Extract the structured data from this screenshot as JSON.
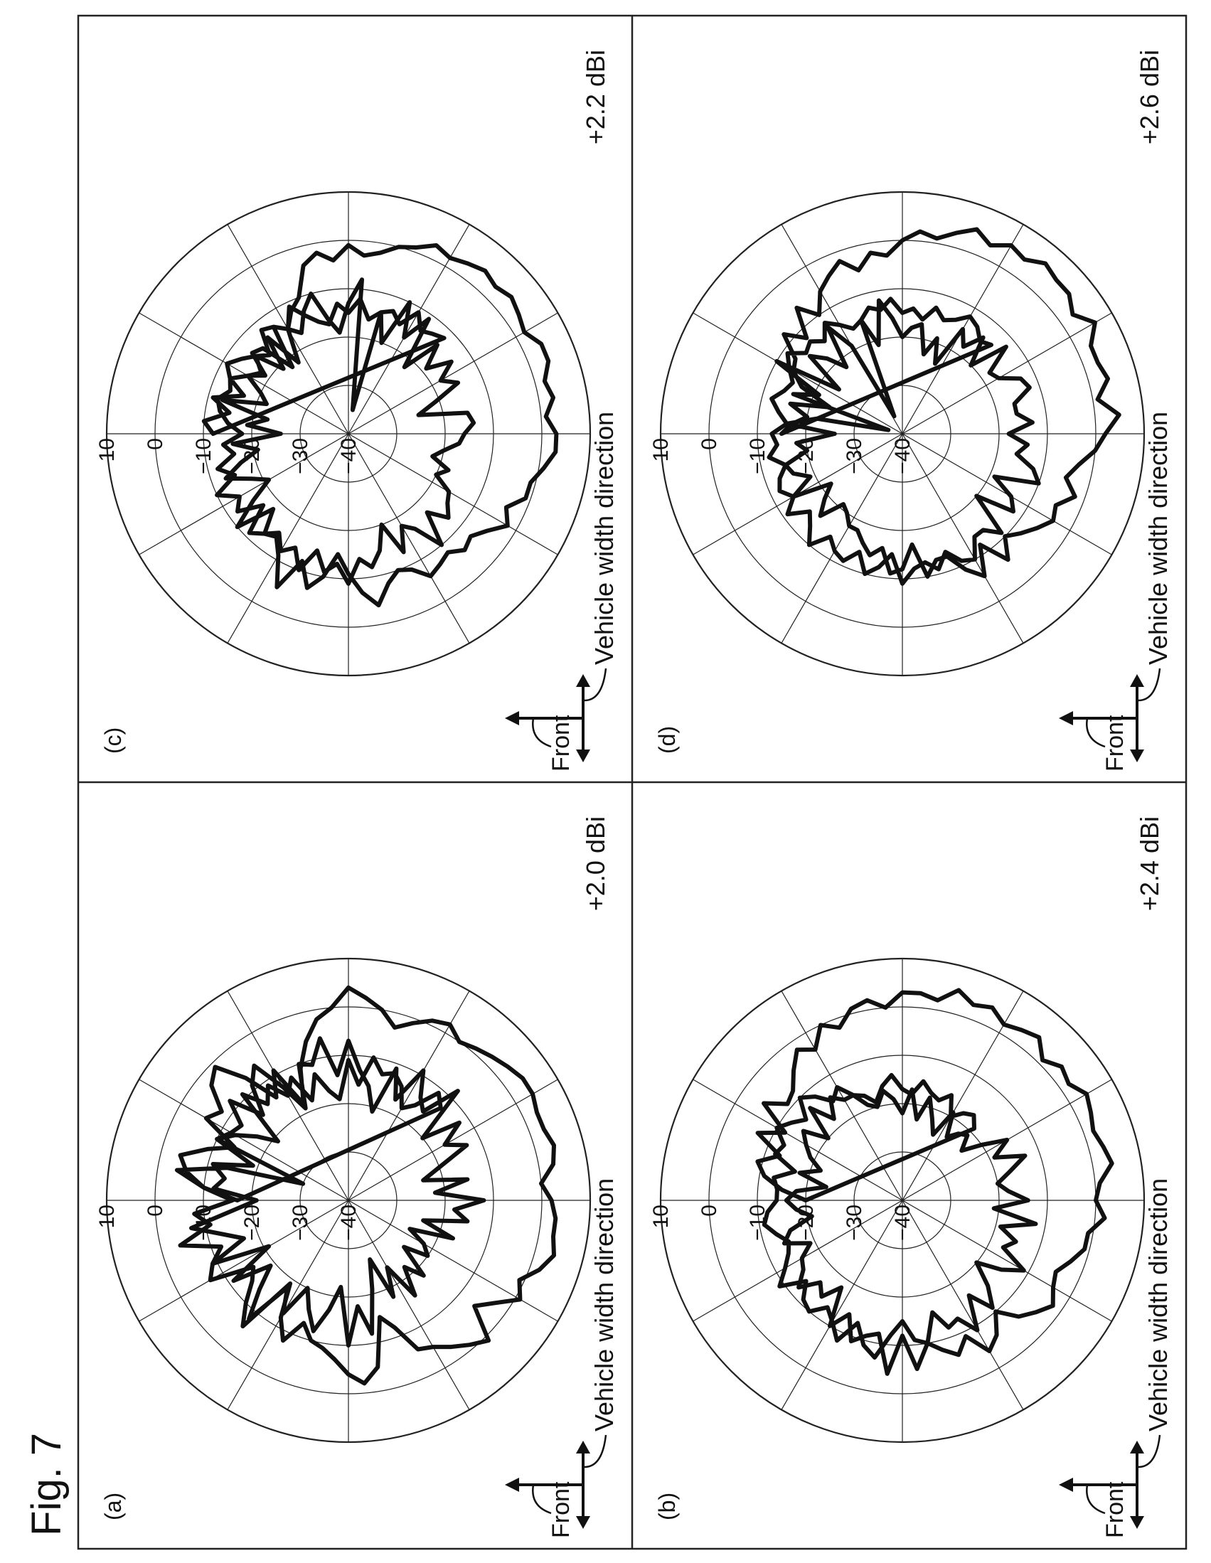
{
  "figure_label": "Fig. 7",
  "chart_data": [
    {
      "type": "polar-line",
      "panel": "(a)",
      "gain_label": "+2.0 dBi",
      "front_label": "Front",
      "direction_label": "Vehicle width direction",
      "radial_ticks": [
        "10",
        "0",
        "-10",
        "-20",
        "-30",
        "-40"
      ],
      "rlim": [
        -40,
        10
      ],
      "angle_step_deg": 5,
      "values": [
        -17,
        -10,
        -6,
        -4,
        -9,
        -14,
        -6,
        -8,
        -3,
        -1,
        -7,
        -14,
        -9,
        -18,
        -11,
        -6,
        -2,
        0,
        4,
        2,
        0,
        -3,
        -1,
        1,
        2,
        0,
        1,
        2,
        3,
        4,
        4,
        3,
        3,
        4,
        3,
        0,
        2,
        3,
        3,
        4,
        2,
        -1,
        1,
        -3,
        -6,
        1,
        -1,
        -3,
        -5,
        -6,
        -12,
        -15,
        -5,
        -2,
        -4,
        -7,
        -9,
        -10,
        -13,
        -8,
        -12,
        -19,
        -6,
        -10,
        -14,
        -16,
        -7,
        -9,
        -12,
        -4,
        -11,
        -8,
        -16,
        -10,
        -4,
        -14,
        -30,
        -10,
        -12,
        -13,
        -8,
        -15,
        -9,
        -6,
        -13,
        -19,
        -10,
        -11,
        -6,
        -14,
        -7,
        -13,
        -16,
        -21,
        -11,
        -17,
        -9,
        -14,
        -16,
        -8,
        -20,
        -12,
        -17,
        -13,
        -20,
        -24,
        -15,
        -22,
        -12,
        -18,
        -15,
        -24,
        -17,
        -26,
        -22,
        -20,
        -25,
        -18,
        -22,
        -16,
        -24,
        -18,
        -27,
        -21,
        -12,
        -18,
        -10,
        -22,
        -17,
        -12,
        -16,
        -20,
        -13,
        -18,
        -8,
        -14,
        -19,
        -11,
        -21,
        -9,
        -17,
        -13,
        -7,
        -16,
        -21,
        -12,
        -14,
        -11,
        -19,
        -10,
        -13,
        -17,
        -21,
        -9,
        -14,
        -11,
        -15,
        -12,
        -18,
        -13,
        -17,
        -19,
        -11,
        -16,
        -10,
        -13,
        -12,
        -14,
        -18,
        -16,
        -11,
        -13
      ]
    },
    {
      "type": "polar-line",
      "panel": "(b)",
      "gain_label": "+2.4 dBi",
      "front_label": "Front",
      "direction_label": "Vehicle width direction",
      "radial_ticks": [
        "10",
        "0",
        "-10",
        "-20",
        "-30",
        "-40"
      ],
      "rlim": [
        -40,
        10
      ],
      "angle_step_deg": 5,
      "values": [
        -20,
        -15,
        -11,
        -9,
        -13,
        -7,
        -12,
        -5,
        -9,
        -8,
        -5,
        -2,
        -4,
        0,
        -2,
        1,
        2,
        0,
        3,
        3,
        2,
        5,
        3,
        4,
        2,
        3,
        4,
        1,
        3,
        2,
        4,
        3,
        2,
        3,
        4,
        1,
        0,
        2,
        -1,
        -1,
        -3,
        -5,
        -4,
        -2,
        -4,
        -6,
        -10,
        -6,
        -4,
        -9,
        -6,
        -8,
        -10,
        -5,
        -12,
        -4,
        -12,
        -11,
        -9,
        -14,
        -10,
        -18,
        -14,
        -16,
        -12,
        -15,
        -16,
        -19,
        -14,
        -16,
        -21,
        -18,
        -16,
        -18,
        -24,
        -18,
        -22,
        -19,
        -17,
        -15,
        -20,
        -13,
        -18,
        -14,
        -16,
        -16,
        -19,
        -20,
        -17,
        -19,
        -22,
        -17,
        -23,
        -18,
        -22,
        -25,
        -19,
        -24,
        -22,
        -21,
        -24,
        -20,
        -15,
        -19,
        -13,
        -17,
        -20,
        -18,
        -14,
        -21,
        -12,
        -19,
        -15,
        -17,
        -11,
        -15,
        -20,
        -15,
        -11,
        -16,
        -9,
        -13,
        -12,
        -16,
        -10,
        -11,
        -15,
        -12,
        -7,
        -9,
        -13,
        -8,
        -11,
        -13,
        -10,
        -11,
        -14,
        -9,
        -12,
        -14,
        -15,
        -13,
        -11,
        -12,
        -14,
        -14,
        -13,
        -17,
        -12,
        -13,
        -10,
        -12,
        -14,
        -10,
        -12,
        -15,
        -13,
        -16,
        -17,
        -19,
        -16,
        -14,
        -17,
        -18,
        -15,
        -17,
        -18,
        -16,
        -20,
        -18,
        -17,
        -19
      ]
    },
    {
      "type": "polar-line",
      "panel": "(c)",
      "gain_label": "+2.2 dBi",
      "front_label": "Front",
      "direction_label": "Vehicle width direction",
      "radial_ticks": [
        "10",
        "0",
        "-10",
        "-20",
        "-30",
        "-40"
      ],
      "rlim": [
        -40,
        10
      ],
      "angle_step_deg": 5,
      "values": [
        -12,
        -10,
        -15,
        -11,
        -17,
        -13,
        -16,
        -19,
        -14,
        -15,
        -22,
        -13,
        -15,
        -12,
        -10,
        -4,
        -2,
        -4,
        -1,
        -3,
        -2,
        0,
        1,
        3,
        2,
        3,
        4,
        3,
        4,
        3,
        2,
        4,
        4,
        2,
        3,
        1,
        3,
        3,
        1,
        -1,
        -1,
        -4,
        -2,
        -5,
        -7,
        -6,
        -8,
        -7,
        -6,
        -9,
        -10,
        -8,
        -4,
        -7,
        -11,
        -15,
        -10,
        -7,
        -12,
        -5,
        -11,
        -14,
        -13,
        -18,
        -10,
        -16,
        -21,
        -18,
        -13,
        -17,
        -21,
        -16,
        -26,
        -19,
        -23,
        -13,
        -22,
        -20,
        -16,
        -18,
        -15,
        -21,
        -14,
        -22,
        -15,
        -17,
        -13,
        -10,
        -16,
        -19,
        -13,
        -8,
        -35,
        -14,
        -20,
        -10,
        -17,
        -11,
        -22,
        -14,
        -19,
        -14,
        -18,
        -15,
        -21,
        -25,
        -15,
        -14,
        -16,
        -17,
        -20,
        -22,
        -18,
        -20,
        -16,
        -15,
        -13,
        -17,
        -10,
        -16,
        -18,
        -13,
        -20,
        -15,
        -12,
        -14,
        -9,
        -13,
        -11,
        -15,
        -10,
        -14,
        -12,
        -15,
        -13,
        -11,
        -17,
        -12,
        -14,
        -10,
        -15,
        -12,
        -16,
        -14,
        -18,
        -15,
        -13,
        -12,
        -14,
        -13,
        -11,
        -13,
        -15,
        -17,
        -12,
        -13,
        -15,
        -11,
        -14,
        -16,
        -17,
        -13,
        -15,
        -12,
        -16,
        -14,
        -13,
        -15,
        -11,
        -14,
        -13,
        -12
      ]
    },
    {
      "type": "polar-line",
      "panel": "(d)",
      "gain_label": "+2.6 dBi",
      "front_label": "Front",
      "direction_label": "Vehicle width direction",
      "radial_ticks": [
        "10",
        "0",
        "-10",
        "-20",
        "-30",
        "-40"
      ],
      "rlim": [
        -40,
        10
      ],
      "angle_step_deg": 5,
      "values": [
        -15,
        -17,
        -20,
        -16,
        -24,
        -17,
        -14,
        -13,
        -8,
        -12,
        -6,
        -10,
        -6,
        -4,
        -2,
        -5,
        -2,
        -3,
        0,
        2,
        1,
        3,
        5,
        3,
        5,
        4,
        6,
        5,
        5,
        3,
        6,
        3,
        3,
        4,
        1,
        5,
        2,
        0,
        -3,
        -5,
        -2,
        -5,
        -4,
        -6,
        -8,
        -10,
        -6,
        -12,
        -6,
        -9,
        -13,
        -13,
        -10,
        -17,
        -12,
        -11,
        -16,
        -14,
        -16,
        -18,
        -18,
        -20,
        -21,
        -16,
        -19,
        -22,
        -14,
        -19,
        -16,
        -15,
        -20,
        -18,
        -26,
        -16,
        -22,
        -37,
        -16,
        -21,
        -10,
        -24,
        -15,
        -18,
        -22,
        -13,
        -19,
        -36,
        -15,
        -21,
        -12,
        -16,
        -20,
        -18,
        -17,
        -23,
        -19,
        -24,
        -15,
        -18,
        -14,
        -20,
        -12,
        -18,
        -17,
        -13,
        -12,
        -16,
        -16,
        -13,
        -18,
        -14,
        -16,
        -12,
        -10,
        -19,
        -14,
        -12,
        -20,
        -11,
        -14,
        -14,
        -10,
        -11,
        -14,
        -11,
        -13,
        -12,
        -9,
        -15,
        -12,
        -10,
        -14,
        -11,
        -12,
        -14,
        -10,
        -13,
        -15,
        -11,
        -14,
        -12,
        -13,
        -15,
        -12,
        -14,
        -13,
        -16,
        -14,
        -12,
        -14,
        -15,
        -13,
        -11,
        -14,
        -13,
        -15,
        -12,
        -14,
        -16,
        -15,
        -13,
        -14,
        -12,
        -15,
        -14,
        -16,
        -13,
        -15,
        -14,
        -12,
        -13,
        -15,
        -14
      ]
    }
  ]
}
